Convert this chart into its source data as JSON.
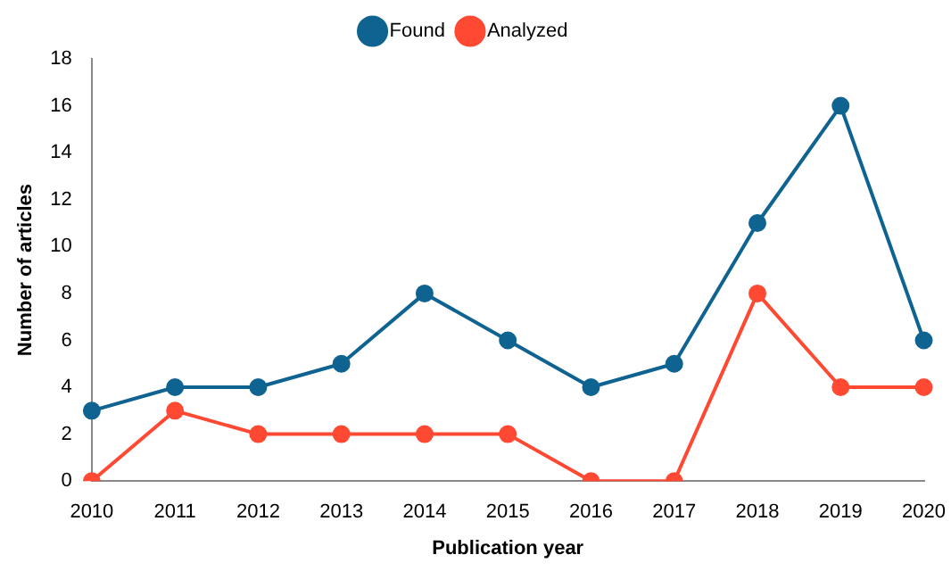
{
  "chart_data": {
    "type": "line",
    "xlabel": "Publication year",
    "ylabel": "Number of articles",
    "categories": [
      "2010",
      "2011",
      "2012",
      "2013",
      "2014",
      "2015",
      "2016",
      "2017",
      "2018",
      "2019",
      "2020"
    ],
    "series": [
      {
        "name": "Found",
        "color": "#0f6391",
        "values": [
          3,
          4,
          4,
          5,
          8,
          6,
          4,
          5,
          11,
          16,
          6
        ]
      },
      {
        "name": "Analyzed",
        "color": "#ff4933",
        "values": [
          0,
          3,
          2,
          2,
          2,
          2,
          0,
          0,
          8,
          4,
          4
        ]
      }
    ],
    "ylim": [
      0,
      18
    ],
    "yticks": [
      0,
      2,
      4,
      6,
      8,
      10,
      12,
      14,
      16,
      18
    ],
    "grid": false,
    "legend": "top",
    "marker": "circle",
    "line_style": "solid"
  }
}
